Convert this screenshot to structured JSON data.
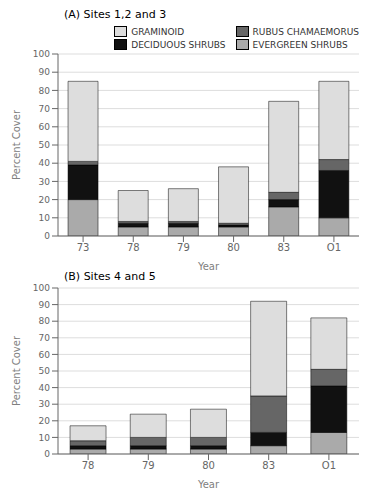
{
  "chart_data": [
    {
      "type": "bar",
      "title": "(A) Sites 1,2 and 3",
      "xlabel": "Year",
      "ylabel": "Percent Cover",
      "categories": [
        "73",
        "78",
        "79",
        "80",
        "83",
        "O1"
      ],
      "series": [
        {
          "name": "EVERGREEN SHRUBS",
          "color": "#aaaaaa",
          "values": [
            20,
            5,
            5,
            5,
            16,
            10
          ]
        },
        {
          "name": "DECIDUOUS SHRUBS",
          "color": "#111111",
          "values": [
            19,
            2,
            2,
            1,
            4,
            26
          ]
        },
        {
          "name": "RUBUS CHAMAEMORUS",
          "color": "#666666",
          "values": [
            2,
            1,
            1,
            1,
            4,
            6
          ]
        },
        {
          "name": "GRAMINOID",
          "color": "#dddddd",
          "values": [
            44,
            17,
            18,
            31,
            50,
            43
          ]
        }
      ],
      "stacked": true,
      "ylim": [
        0,
        100
      ],
      "yticks": [
        0,
        10,
        20,
        30,
        40,
        50,
        60,
        70,
        80,
        90,
        100
      ],
      "grid": true,
      "legend": "upper right"
    },
    {
      "type": "bar",
      "title": "(B) Sites 4 and 5",
      "xlabel": "Year",
      "ylabel": "Percent Cover",
      "categories": [
        "78",
        "79",
        "80",
        "83",
        "O1"
      ],
      "series": [
        {
          "name": "EVERGREEN SHRUBS",
          "color": "#aaaaaa",
          "values": [
            3,
            3,
            3,
            5,
            13
          ]
        },
        {
          "name": "DECIDUOUS SHRUBS",
          "color": "#111111",
          "values": [
            2,
            2,
            2,
            8,
            28
          ]
        },
        {
          "name": "RUBUS CHAMAEMORUS",
          "color": "#666666",
          "values": [
            3,
            5,
            5,
            22,
            10
          ]
        },
        {
          "name": "GRAMINOID",
          "color": "#dddddd",
          "values": [
            9,
            14,
            17,
            57,
            31
          ]
        }
      ],
      "stacked": true,
      "ylim": [
        0,
        100
      ],
      "yticks": [
        0,
        10,
        20,
        30,
        40,
        50,
        60,
        70,
        80,
        90,
        100
      ],
      "grid": true
    }
  ]
}
